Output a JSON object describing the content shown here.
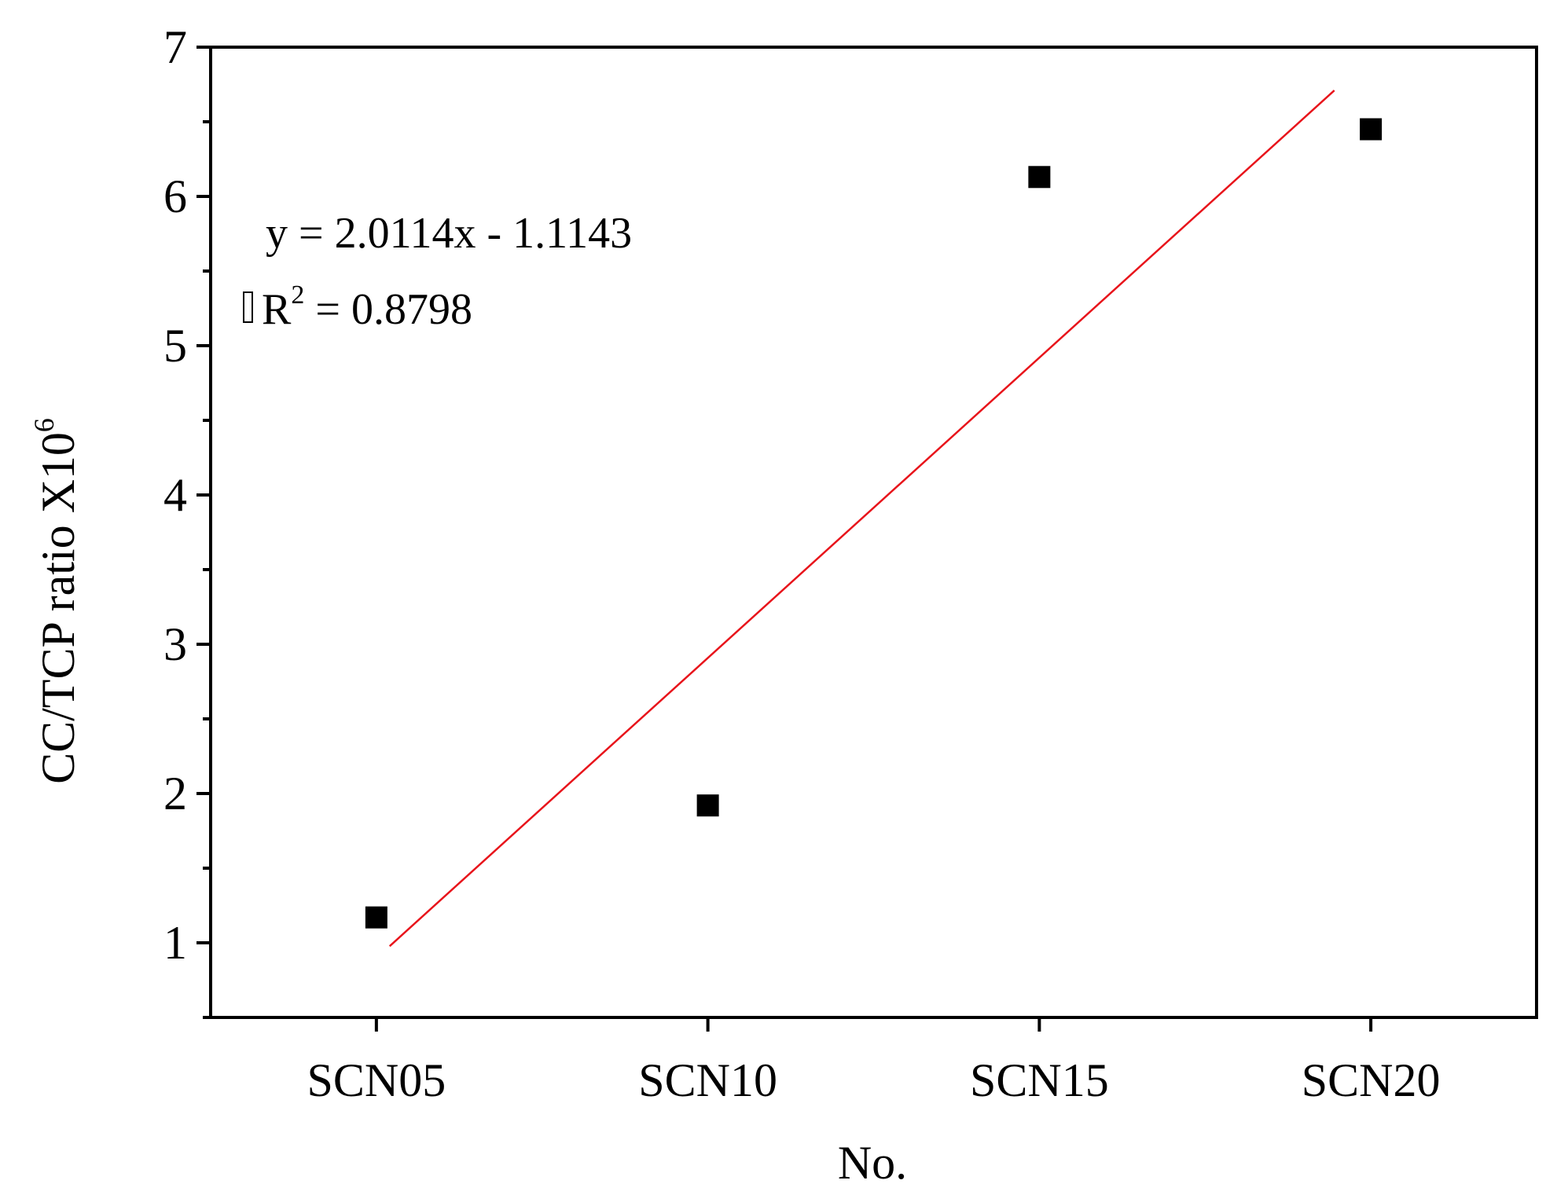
{
  "chart_data": {
    "type": "scatter",
    "categories": [
      "SCN05",
      "SCN10",
      "SCN15",
      "SCN20"
    ],
    "x": [
      1,
      2,
      3,
      4
    ],
    "series": [
      {
        "values": [
          1.17,
          1.92,
          6.13,
          6.45
        ],
        "marker": "square",
        "color": "#000000"
      }
    ],
    "fit": {
      "type": "linear",
      "slope": 2.0114,
      "intercept": -1.1143,
      "x_range": [
        1.04,
        3.89
      ],
      "color": "#e8141b"
    },
    "annotations": {
      "equation": "y = 2.0114x - 1.1143",
      "r2_prefix": "R",
      "r2_sup": "2",
      "r2_value": " = 0.8798"
    },
    "xlabel": "No.",
    "ylabel": "CC/TCP ratio X10",
    "ylabel_sup": "6",
    "xlim": [
      0.5,
      4.5
    ],
    "ylim": [
      0.5,
      7
    ],
    "yticks": [
      1,
      2,
      3,
      4,
      5,
      6,
      7
    ],
    "grid": false
  }
}
